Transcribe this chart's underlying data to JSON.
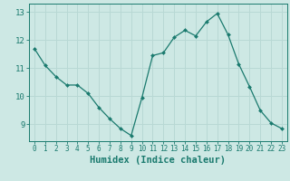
{
  "x": [
    0,
    1,
    2,
    3,
    4,
    5,
    6,
    7,
    8,
    9,
    10,
    11,
    12,
    13,
    14,
    15,
    16,
    17,
    18,
    19,
    20,
    21,
    22,
    23
  ],
  "y": [
    11.7,
    11.1,
    10.7,
    10.4,
    10.4,
    10.1,
    9.6,
    9.2,
    8.85,
    8.6,
    9.95,
    11.45,
    11.55,
    12.1,
    12.35,
    12.15,
    12.65,
    12.95,
    12.2,
    11.15,
    10.35,
    9.5,
    9.05,
    8.85
  ],
  "line_color": "#1a7a6e",
  "marker": "D",
  "marker_size": 2.0,
  "bg_color": "#cde8e4",
  "grid_color": "#b8d8d4",
  "tick_color": "#1a7a6e",
  "xlabel": "Humidex (Indice chaleur)",
  "xlabel_fontsize": 7.5,
  "ylim": [
    8.4,
    13.3
  ],
  "yticks": [
    9,
    10,
    11,
    12,
    13
  ],
  "xticks": [
    0,
    1,
    2,
    3,
    4,
    5,
    6,
    7,
    8,
    9,
    10,
    11,
    12,
    13,
    14,
    15,
    16,
    17,
    18,
    19,
    20,
    21,
    22,
    23
  ]
}
